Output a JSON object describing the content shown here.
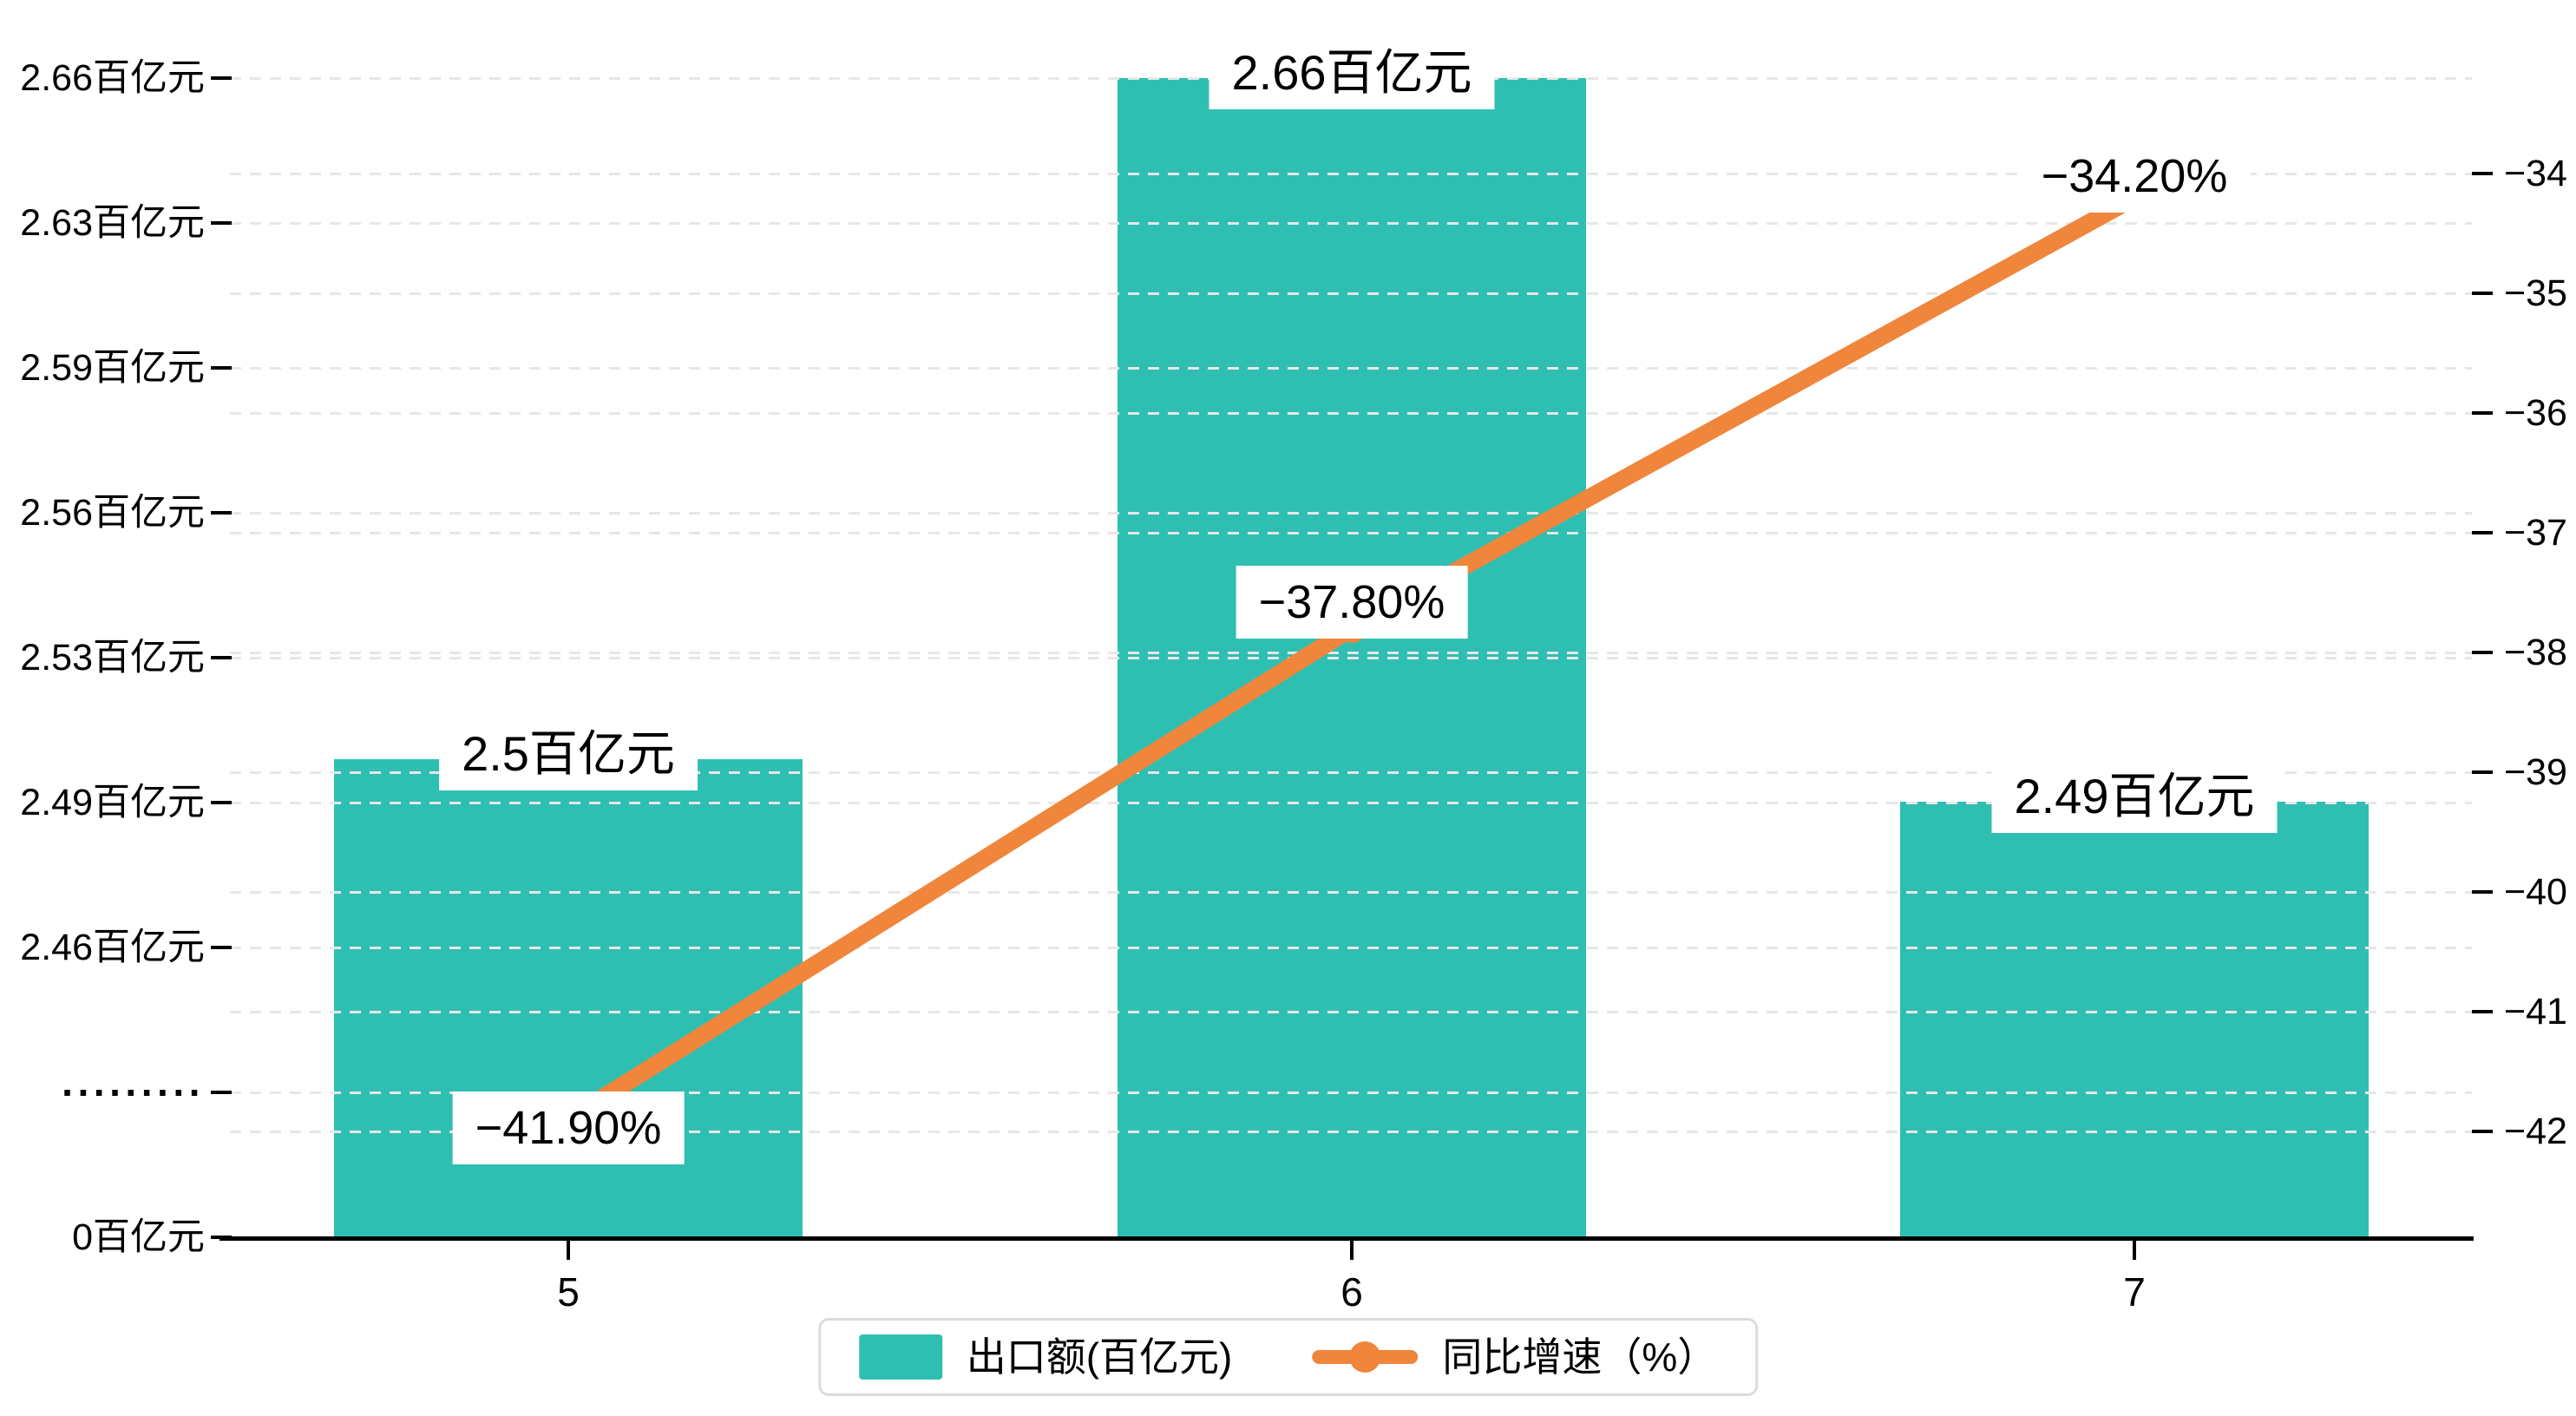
{
  "chart_data": {
    "type": "bar",
    "subtype": "bar-line-combo",
    "categories": [
      "5",
      "6",
      "7"
    ],
    "series": [
      {
        "name": "出口额(百亿元)",
        "type": "bar",
        "unit": "百亿元",
        "values": [
          2.5,
          2.66,
          2.49
        ],
        "data_labels": [
          "2.5百亿元",
          "2.66百亿元",
          "2.49百亿元"
        ],
        "color": "#2fbfb2",
        "axis": "left"
      },
      {
        "name": "同比增速（%）",
        "type": "line",
        "unit": "%",
        "values": [
          -41.9,
          -37.8,
          -34.2
        ],
        "data_labels": [
          "−41.90%",
          "−37.80%",
          "−34.20%"
        ],
        "color": "#f0853c",
        "axis": "right"
      }
    ],
    "left_axis": {
      "tick_labels": [
        "2.66百亿元",
        "2.63百亿元",
        "2.59百亿元",
        "2.56百亿元",
        "2.53百亿元",
        "2.49百亿元",
        "2.46百亿元",
        "·········",
        "0百亿元"
      ],
      "axis_break": true,
      "range_note": "0 then break then 2.46–2.66"
    },
    "right_axis": {
      "tick_labels": [
        "−34",
        "−35",
        "−36",
        "−37",
        "−38",
        "−39",
        "−40",
        "−41",
        "−42"
      ],
      "range": [
        -42,
        -34
      ]
    },
    "x_axis": {
      "tick_labels": [
        "5",
        "6",
        "7"
      ]
    },
    "legend": {
      "items": [
        {
          "label": "出口额(百亿元)",
          "marker": "bar-swatch",
          "color": "#2fbfb2"
        },
        {
          "label": "同比增速（%）",
          "marker": "line-dot-swatch",
          "color": "#f0853c"
        }
      ]
    },
    "grid": "horizontal dashed lines for both y axes",
    "legend_position": "bottom-center",
    "colors": {
      "bar": "#2fbfb2",
      "line": "#f0853c",
      "gridline": "#e7e7e7",
      "axis_line": "#000000",
      "label_background": "#ffffff",
      "text": "#000000",
      "legend_border": "#dcdcdc"
    }
  }
}
